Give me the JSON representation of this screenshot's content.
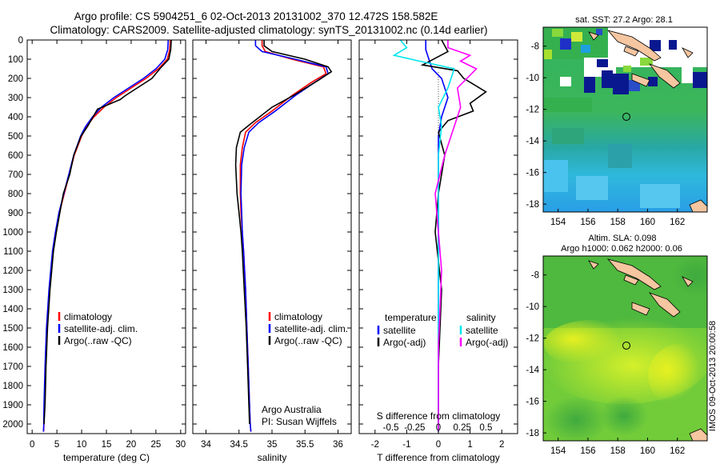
{
  "title": {
    "line1": "Argo profile: CS 5904251_6 02-Oct-2013 20131002_370 12.472S 158.582E",
    "line2": "Climatology: CARS2009. Satellite-adjusted climatology: synTS_20131002.nc (0.14d earlier)"
  },
  "side_text": "IMOS 09-Oct-2013 20:00:58",
  "colors": {
    "climatology": "#ff0000",
    "satellite": "#0000ff",
    "argo": "#000000",
    "sal_sat": "#00e5ee",
    "sal_argo": "#ff00ff"
  },
  "chart_data": [
    {
      "id": "temperature",
      "type": "line",
      "xlabel": "temperature (deg C)",
      "ylabel": "",
      "xlim": [
        -1,
        31
      ],
      "ylim": [
        2050,
        0
      ],
      "xticks": [
        "0",
        "5",
        "10",
        "15",
        "20",
        "25",
        "30"
      ],
      "yticks": [
        "0",
        "100",
        "200",
        "300",
        "400",
        "500",
        "600",
        "700",
        "800",
        "900",
        "1000",
        "1100",
        "1200",
        "1300",
        "1400",
        "1500",
        "1600",
        "1700",
        "1800",
        "1900",
        "2000"
      ],
      "legend": [
        "climatology",
        "satellite-adj. clim.",
        "Argo(..raw -QC)"
      ],
      "series": [
        {
          "name": "climatology",
          "color": "#ff0000",
          "x": [
            27.9,
            27.8,
            27.3,
            25.5,
            23,
            20,
            17,
            14.5,
            12.5,
            11,
            10,
            8.5,
            7.5,
            6.5,
            5.5,
            4.8,
            4.2,
            3.5,
            3,
            2.7,
            2.5,
            2.4,
            2.3
          ],
          "y": [
            0,
            50,
            100,
            150,
            200,
            250,
            300,
            350,
            400,
            450,
            500,
            600,
            700,
            800,
            900,
            1000,
            1100,
            1300,
            1500,
            1700,
            1900,
            2000,
            2040
          ]
        },
        {
          "name": "satellite-adj. clim.",
          "color": "#0000ff",
          "x": [
            27.5,
            27.4,
            26.8,
            25,
            22.5,
            19.5,
            16.5,
            14,
            12.2,
            10.8,
            9.8,
            8.4,
            7.4,
            6.4,
            5.4,
            4.7,
            4.1,
            3.4,
            2.9,
            2.6,
            2.4,
            2.35,
            2.3
          ],
          "y": [
            0,
            50,
            100,
            150,
            200,
            250,
            300,
            350,
            400,
            450,
            500,
            600,
            700,
            800,
            900,
            1000,
            1100,
            1300,
            1500,
            1700,
            1900,
            2000,
            2040
          ]
        },
        {
          "name": "Argo(..raw -QC)",
          "color": "#000000",
          "x": [
            28.1,
            28.0,
            27.6,
            25.8,
            24.2,
            21.2,
            18.8,
            17.8,
            13.2,
            11.2,
            9.9,
            8.4,
            7.6,
            6.3,
            5.6,
            4.9,
            4.3,
            3.6,
            3.1,
            2.8,
            2.6,
            2.4
          ],
          "y": [
            0,
            50,
            100,
            150,
            200,
            250,
            290,
            310,
            360,
            450,
            500,
            600,
            700,
            800,
            900,
            1000,
            1100,
            1300,
            1500,
            1700,
            1900,
            2000
          ]
        }
      ]
    },
    {
      "id": "salinity",
      "type": "line",
      "xlabel": "salinity",
      "ylabel": "",
      "xlim": [
        33.8,
        36.2
      ],
      "ylim": [
        2050,
        0
      ],
      "xticks": [
        "34",
        "34.5",
        "35",
        "35.5",
        "36"
      ],
      "xtick_values": [
        34,
        34.5,
        35,
        35.5,
        36
      ],
      "legend": [
        "climatology",
        "satellite-adj. clim.",
        "Argo(..raw -QC)"
      ],
      "annotation": [
        "Argo Australia",
        "PI: Susan Wijffels"
      ],
      "series": [
        {
          "name": "climatology",
          "color": "#ff0000",
          "x": [
            34.85,
            34.85,
            34.9,
            35.3,
            35.78,
            35.82,
            35.6,
            35.3,
            35.0,
            34.75,
            34.6,
            34.55,
            34.52,
            34.52,
            34.53,
            34.55,
            34.57,
            34.6,
            34.62,
            34.64,
            34.66,
            34.67,
            34.68
          ],
          "y": [
            0,
            30,
            60,
            100,
            140,
            175,
            220,
            290,
            370,
            430,
            480,
            560,
            650,
            800,
            900,
            1000,
            1100,
            1300,
            1500,
            1700,
            1900,
            2000,
            2040
          ]
        },
        {
          "name": "satellite-adj. clim.",
          "color": "#0000ff",
          "x": [
            34.75,
            34.75,
            34.85,
            35.35,
            35.82,
            35.85,
            35.65,
            35.35,
            35.05,
            34.8,
            34.65,
            34.58,
            34.54,
            34.53,
            34.54,
            34.55,
            34.57,
            34.6,
            34.62,
            34.64,
            34.66,
            34.67,
            34.68
          ],
          "y": [
            0,
            30,
            60,
            100,
            140,
            175,
            220,
            290,
            370,
            430,
            480,
            560,
            650,
            800,
            900,
            1000,
            1100,
            1300,
            1500,
            1700,
            1900,
            2000,
            2040
          ]
        },
        {
          "name": "Argo(..raw -QC)",
          "color": "#000000",
          "x": [
            34.88,
            34.88,
            35.0,
            35.5,
            35.85,
            35.9,
            35.7,
            35.32,
            35.0,
            34.7,
            34.52,
            34.46,
            34.45,
            34.47,
            34.5,
            34.53,
            34.55,
            34.58,
            34.61,
            34.63,
            34.65,
            34.66
          ],
          "y": [
            0,
            30,
            60,
            100,
            140,
            165,
            210,
            290,
            350,
            430,
            480,
            560,
            650,
            800,
            900,
            1000,
            1100,
            1300,
            1500,
            1700,
            1900,
            2000
          ]
        }
      ]
    },
    {
      "id": "difference",
      "type": "line",
      "xlabel": "T difference from climatology",
      "xlabel2": "S difference from climatology",
      "xlim": [
        -2.5,
        2.5
      ],
      "ylim": [
        2050,
        0
      ],
      "xticks": [
        "-2",
        "-1",
        "0",
        "1",
        "2"
      ],
      "xtick_values": [
        -2,
        -1,
        0,
        1,
        2
      ],
      "s_ticks": [
        "-0.5",
        "-0.25",
        "0",
        "0.25",
        "0.5"
      ],
      "s_tick_values": [
        -1.5,
        -0.75,
        0,
        0.75,
        1.5
      ],
      "legend_titles": [
        "temperature",
        "salinity"
      ],
      "legend": [
        "satellite",
        "Argo(-adj)",
        "satellite",
        "Argo(-adj)"
      ],
      "series": [
        {
          "name": "T satellite",
          "color": "#0000ff",
          "x": [
            -0.4,
            -0.4,
            -0.3,
            -0.2,
            0.1,
            0.3,
            0.1,
            0.0,
            0.0,
            0.0,
            0.0,
            0.0,
            0.0
          ],
          "y": [
            0,
            50,
            100,
            150,
            200,
            300,
            400,
            500,
            700,
            1000,
            1500,
            1800,
            2040
          ]
        },
        {
          "name": "T Argo(-adj)",
          "color": "#000000",
          "x": [
            0.1,
            0.3,
            -0.5,
            0.6,
            0.8,
            1.5,
            1.0,
            1.1,
            0.3,
            0.0,
            0.2,
            0.0,
            -0.1,
            0.1,
            0.0,
            0.0
          ],
          "y": [
            0,
            60,
            130,
            160,
            200,
            270,
            330,
            370,
            420,
            480,
            600,
            800,
            1000,
            1300,
            1700,
            2000
          ]
        },
        {
          "name": "S satellite",
          "color": "#00e5ee",
          "x": [
            -1.2,
            -1.0,
            -1.4,
            -0.6,
            0.5,
            0.3,
            0.0,
            0.1,
            0.0,
            0.0,
            0.0,
            0.0,
            0.0
          ],
          "y": [
            0,
            40,
            80,
            110,
            150,
            250,
            350,
            450,
            600,
            900,
            1300,
            1700,
            2040
          ]
        },
        {
          "name": "S Argo(-adj)",
          "color": "#ff00ff",
          "x": [
            0.3,
            0.3,
            1.0,
            0.7,
            1.2,
            0.6,
            0.7,
            0.5,
            0.2,
            -0.1,
            0.1,
            0.0,
            0.0
          ],
          "y": [
            0,
            40,
            80,
            110,
            150,
            250,
            350,
            450,
            600,
            800,
            1200,
            1600,
            2040
          ]
        }
      ]
    },
    {
      "id": "map_sst",
      "type": "heatmap",
      "title": "sat. SST: 27.2 Argo: 28.1",
      "xlim": [
        153,
        164
      ],
      "ylim": [
        -18.5,
        -6.8
      ],
      "xticks": [
        "154",
        "156",
        "158",
        "160",
        "162"
      ],
      "xtick_values": [
        154,
        156,
        158,
        160,
        162
      ],
      "yticks": [
        "-8",
        "-10",
        "-12",
        "-14",
        "-16",
        "-18"
      ],
      "ytick_values": [
        -8,
        -10,
        -12,
        -14,
        -16,
        -18
      ],
      "argo_position": [
        158.58,
        -12.47
      ]
    },
    {
      "id": "map_sla",
      "type": "heatmap",
      "title": "Altim. SLA: 0.098",
      "subtitle": "Argo h1000: 0.062 h2000: 0.06",
      "xlim": [
        153,
        164
      ],
      "ylim": [
        -18.5,
        -6.8
      ],
      "xticks": [
        "154",
        "156",
        "158",
        "160",
        "162"
      ],
      "xtick_values": [
        154,
        156,
        158,
        160,
        162
      ],
      "yticks": [
        "-8",
        "-10",
        "-12",
        "-14",
        "-16",
        "-18"
      ],
      "ytick_values": [
        -8,
        -10,
        -12,
        -14,
        -16,
        -18
      ],
      "argo_position": [
        158.58,
        -12.47
      ]
    }
  ]
}
